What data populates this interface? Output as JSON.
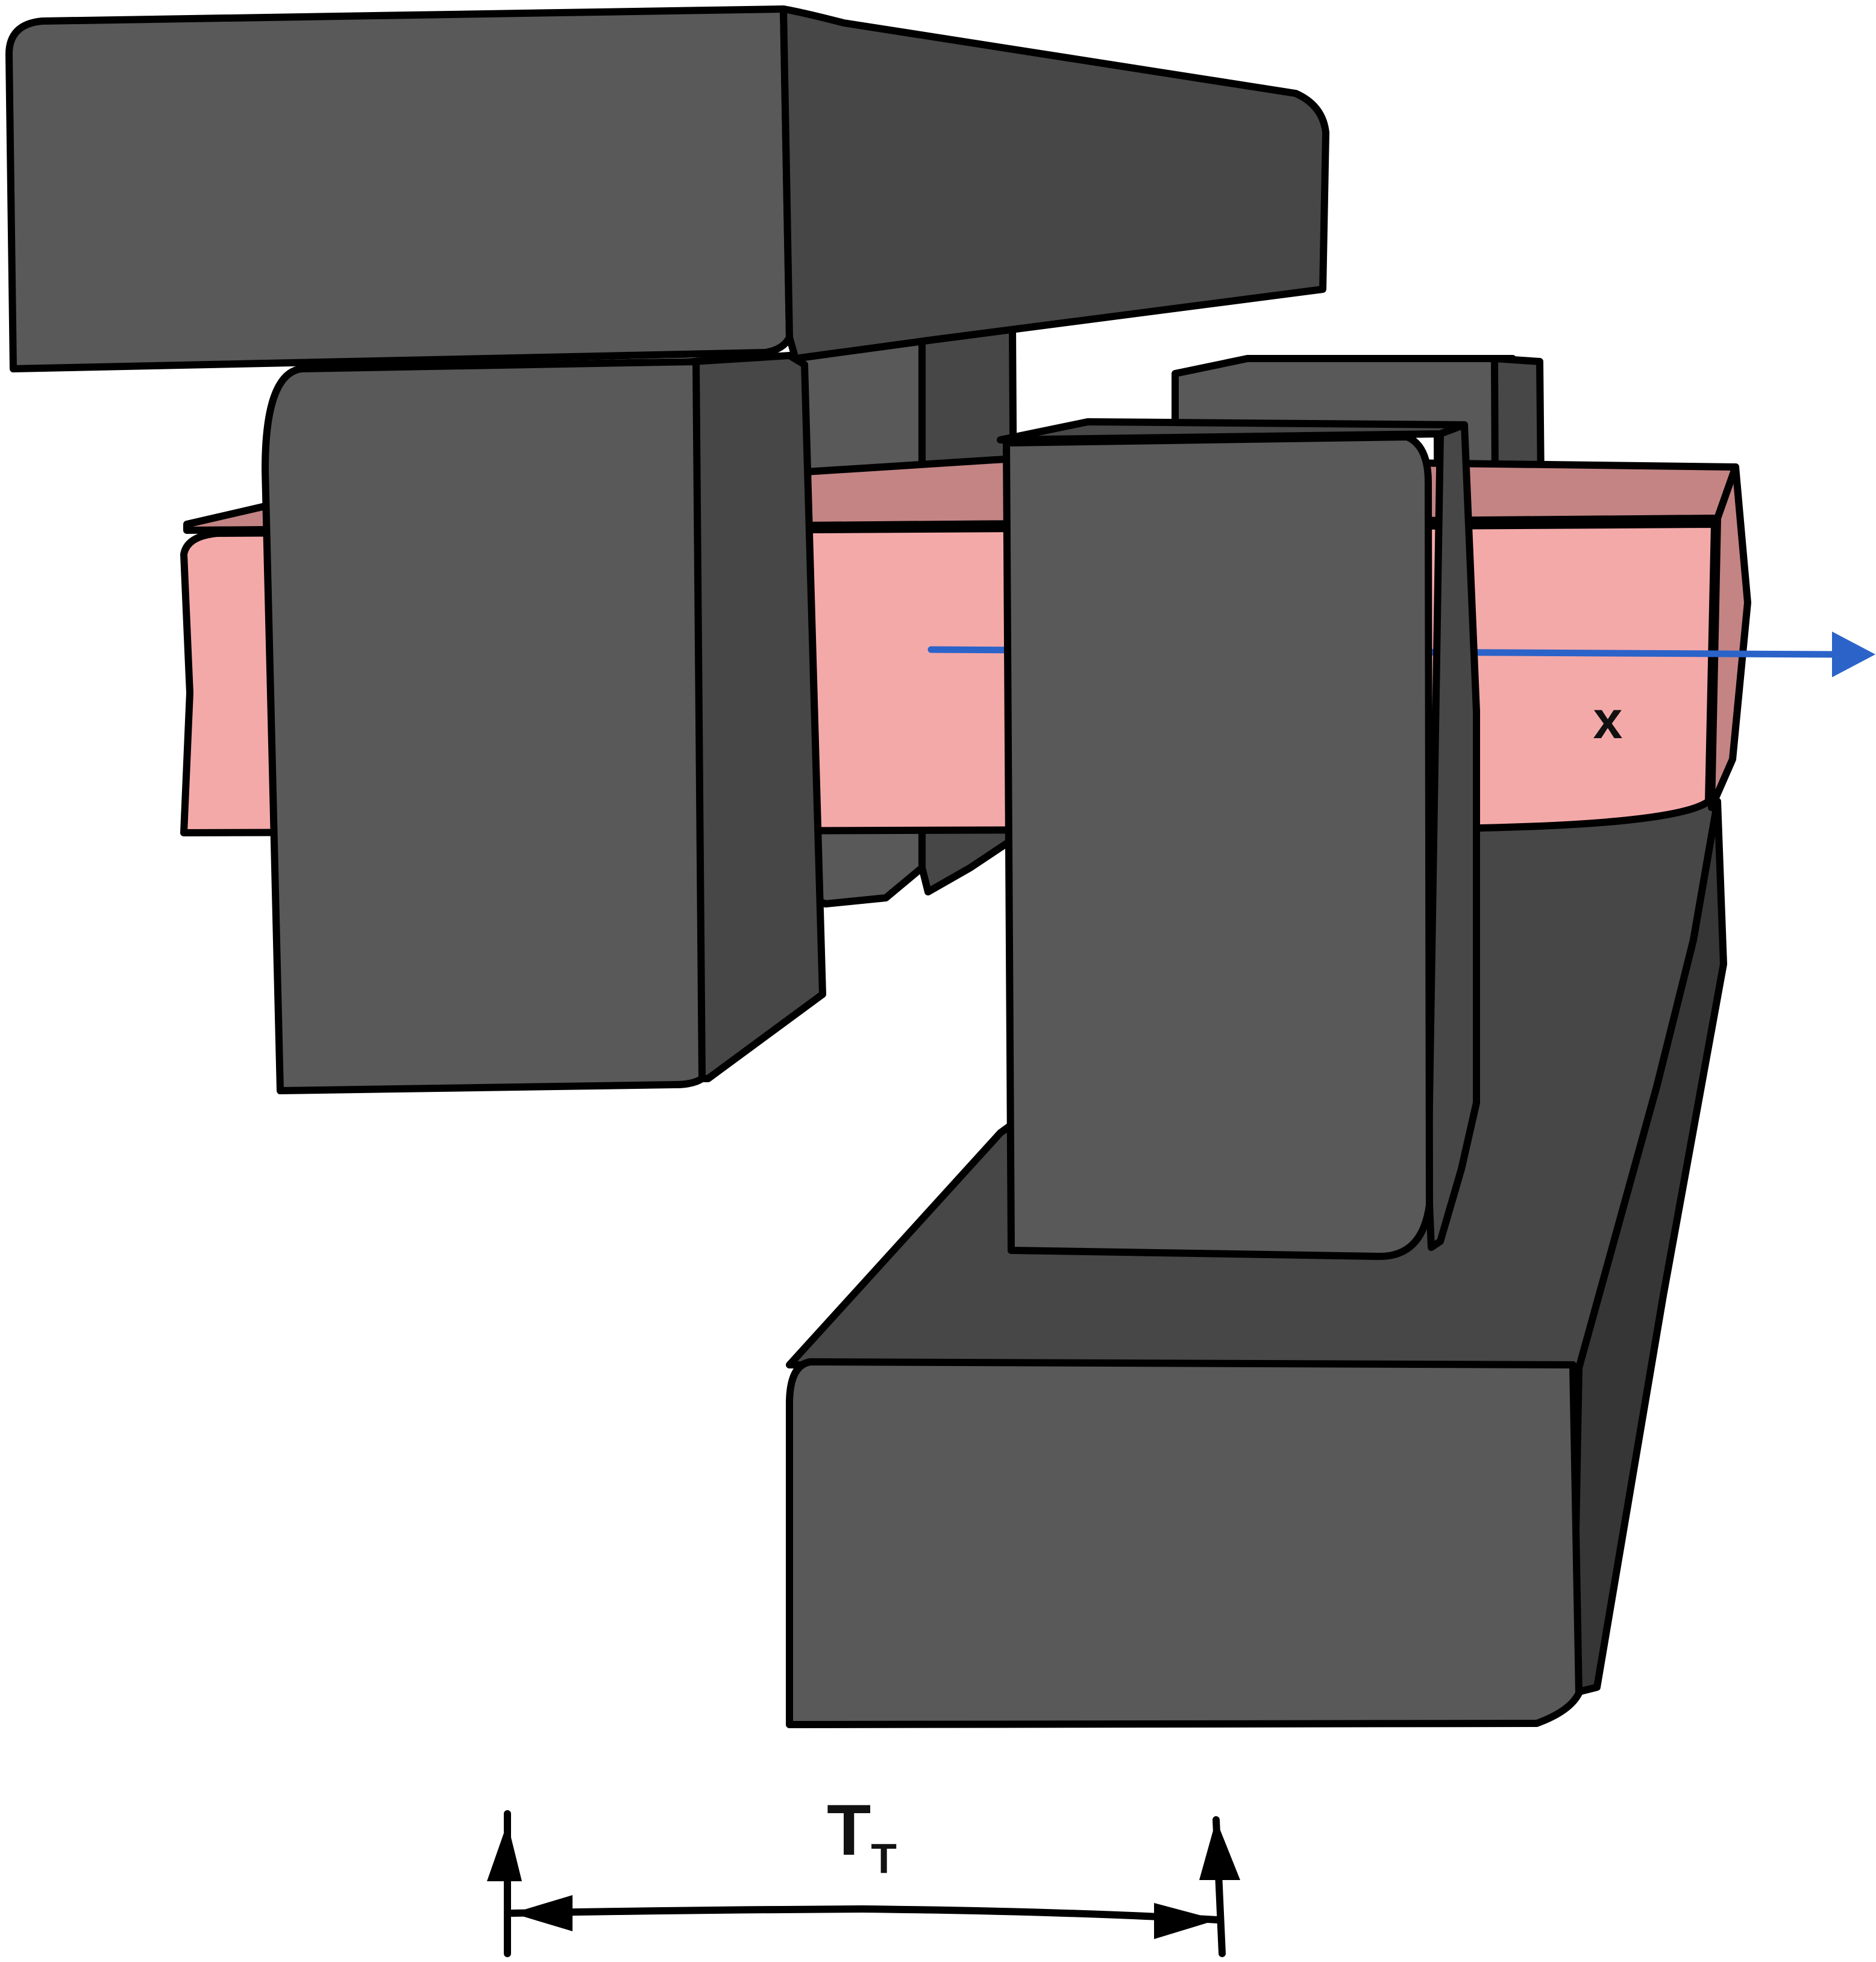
{
  "diagram": {
    "axis_label": "x",
    "dimension_label": "T",
    "dimension_subscript": "T"
  },
  "colors": {
    "block_front": "#595959",
    "block_side": "#474747",
    "block_shadow": "#363636",
    "strip_front": "#f4a9a9",
    "strip_top": "#c48484",
    "axis_arrow": "#2b63c9",
    "outline": "#000000"
  }
}
